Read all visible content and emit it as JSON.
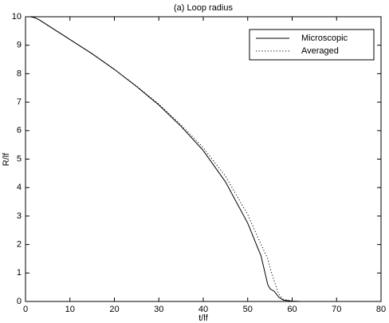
{
  "chart_data": {
    "type": "line",
    "title": "(a) Loop radius",
    "xlabel": "t/lf",
    "ylabel": "R/lf",
    "x": [
      0,
      1,
      2,
      3,
      5,
      10,
      15,
      20,
      25,
      30,
      35,
      40,
      45,
      50,
      53,
      54.5,
      55,
      56,
      57,
      58,
      60,
      62,
      70
    ],
    "series": [
      {
        "name": "Microscopic",
        "color": "#000000",
        "linestyle": "solid",
        "values": [
          10,
          10,
          9.97,
          9.9,
          9.7,
          9.2,
          8.7,
          8.15,
          7.55,
          6.9,
          6.15,
          5.3,
          4.2,
          2.75,
          1.6,
          0.6,
          0.45,
          0.35,
          0.15,
          0.05,
          0.01,
          0,
          0
        ]
      },
      {
        "name": "Averaged",
        "color": "#000000",
        "linestyle": "dotted",
        "values": [
          10,
          10,
          9.97,
          9.9,
          9.7,
          9.2,
          8.7,
          8.15,
          7.56,
          6.93,
          6.2,
          5.4,
          4.4,
          3.05,
          2.0,
          1.5,
          1.2,
          0.7,
          0.25,
          0.08,
          0.01,
          0,
          0
        ]
      }
    ],
    "xlim": [
      0,
      80
    ],
    "xticks": [
      0,
      10,
      20,
      30,
      40,
      50,
      60,
      70,
      80
    ],
    "ylim": [
      0,
      10
    ],
    "yticks": [
      0,
      1,
      2,
      3,
      4,
      5,
      6,
      7,
      8,
      9,
      10
    ],
    "grid": false,
    "legend": "upper right"
  }
}
